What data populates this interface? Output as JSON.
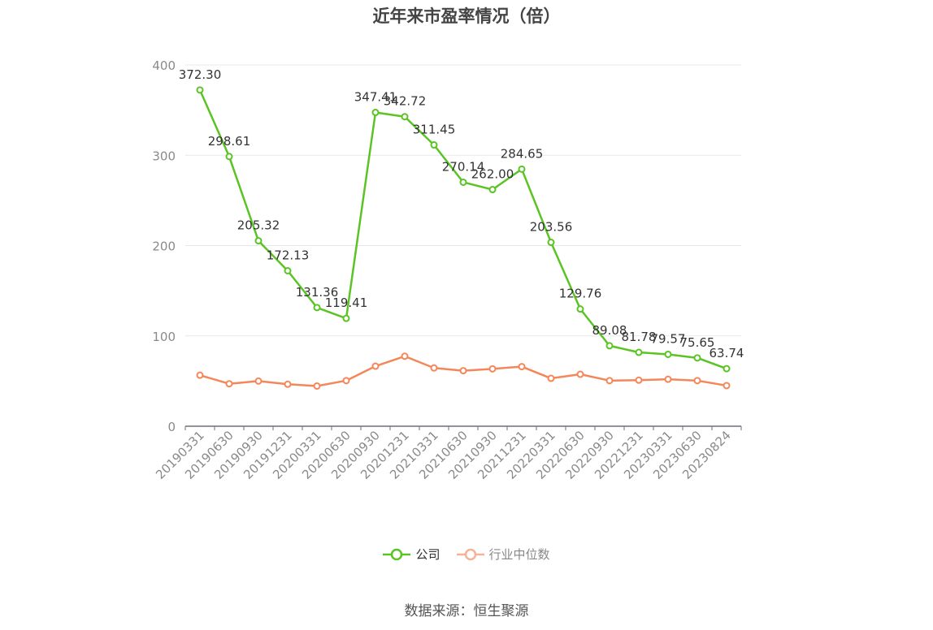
{
  "title": "近年来市盈率情况（倍）",
  "source": "数据来源：恒生聚源",
  "colors": {
    "company": "#5bc424",
    "industry": "#f4875a",
    "industry_legend": "#f7b199",
    "grid": "#e6e8ef",
    "axis": "#6e7079",
    "tick_text": "#8a8a8a"
  },
  "chart_data": {
    "type": "line",
    "title": "近年来市盈率情况（倍）",
    "xlabel": "",
    "ylabel": "",
    "ylim": [
      0,
      400
    ],
    "yticks": [
      "0",
      "100",
      "200",
      "300",
      "400"
    ],
    "grid": true,
    "legend_position": "bottom-center",
    "categories": [
      "20190331",
      "20190630",
      "20190930",
      "20191231",
      "20200331",
      "20200630",
      "20200930",
      "20201231",
      "20210331",
      "20210630",
      "20210930",
      "20211231",
      "20220331",
      "20220630",
      "20220930",
      "20221231",
      "20230331",
      "20230630",
      "20230824"
    ],
    "series": [
      {
        "name": "公司",
        "values": [
          372.3,
          298.61,
          205.32,
          172.13,
          131.36,
          119.41,
          347.41,
          342.72,
          311.45,
          270.14,
          262.0,
          284.65,
          203.56,
          129.76,
          89.08,
          81.78,
          79.57,
          75.65,
          63.74
        ],
        "labels": [
          "372.30",
          "298.61",
          "205.32",
          "172.13",
          "131.36",
          "119.41",
          "347.41",
          "342.72",
          "311.45",
          "270.14",
          "262.00",
          "284.65",
          "203.56",
          "129.76",
          "89.08",
          "81.78",
          "79.57",
          "75.65",
          "63.74"
        ]
      },
      {
        "name": "行业中位数",
        "values": [
          56.5,
          47.0,
          50.0,
          46.5,
          44.5,
          50.5,
          66.5,
          77.5,
          64.5,
          61.5,
          63.5,
          66.0,
          53.0,
          57.5,
          50.5,
          51.0,
          52.0,
          50.5,
          45.0
        ]
      }
    ]
  }
}
